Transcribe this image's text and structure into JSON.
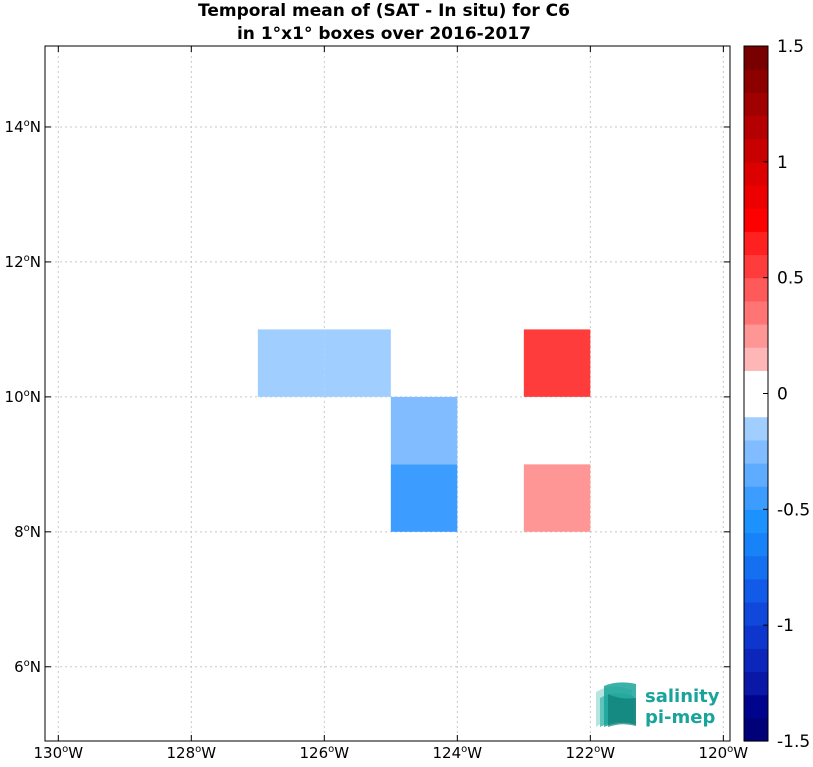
{
  "chart_data": {
    "type": "heatmap",
    "title_line1": "Temporal mean of (SAT - In situ) for C6",
    "title_line2": "in 1°x1° boxes over 2016-2017",
    "xlim": [
      -130.2,
      -119.9
    ],
    "ylim": [
      4.9,
      15.2
    ],
    "x_ticks": [
      {
        "value": -130,
        "label": "130",
        "hemi": "W"
      },
      {
        "value": -128,
        "label": "128",
        "hemi": "W"
      },
      {
        "value": -126,
        "label": "126",
        "hemi": "W"
      },
      {
        "value": -124,
        "label": "124",
        "hemi": "W"
      },
      {
        "value": -122,
        "label": "122",
        "hemi": "W"
      },
      {
        "value": -120,
        "label": "120",
        "hemi": "W"
      }
    ],
    "y_ticks": [
      {
        "value": 6,
        "label": "6",
        "hemi": "N"
      },
      {
        "value": 8,
        "label": "8",
        "hemi": "N"
      },
      {
        "value": 10,
        "label": "10",
        "hemi": "N"
      },
      {
        "value": 12,
        "label": "12",
        "hemi": "N"
      },
      {
        "value": 14,
        "label": "14",
        "hemi": "N"
      }
    ],
    "grid": true,
    "cells": [
      {
        "lon": -127,
        "lat": 10,
        "value": -0.1
      },
      {
        "lon": -126,
        "lat": 10,
        "value": -0.1
      },
      {
        "lon": -125,
        "lat": 9,
        "value": -0.25
      },
      {
        "lon": -125,
        "lat": 8,
        "value": -0.45
      },
      {
        "lon": -123,
        "lat": 10,
        "value": 0.55
      },
      {
        "lon": -123,
        "lat": 8,
        "value": 0.25
      }
    ],
    "colorbar": {
      "range": [
        -1.5,
        1.5
      ],
      "levels": 30,
      "tick_values": [
        -1.5,
        -1,
        -0.5,
        0,
        0.5,
        1,
        1.5
      ],
      "tick_labels": [
        "-1.5",
        "-1",
        "-0.5",
        "0",
        "0.5",
        "1",
        "1.5"
      ],
      "colors": [
        "#000078",
        "#00048c",
        "#0a18a8",
        "#0c26bc",
        "#0e36cc",
        "#1048dc",
        "#125ae8",
        "#1470f0",
        "#1882f8",
        "#1c92ff",
        "#3c9cff",
        "#5eacff",
        "#80bcff",
        "#a0ceff",
        "#c4deff",
        "#ffd8d8",
        "#ffb6b6",
        "#ff9696",
        "#ff7474",
        "#ff5a5a",
        "#ff3c3c",
        "#ff2020",
        "#ff0000",
        "#ec0000",
        "#dc0000",
        "#c80000",
        "#b40000",
        "#a00000",
        "#8c0000",
        "#780000"
      ],
      "white_band": [
        -0.1,
        0.1
      ]
    }
  },
  "logo": {
    "line1": "salinity",
    "line2": "pi-mep",
    "color": "#1aa39a"
  }
}
